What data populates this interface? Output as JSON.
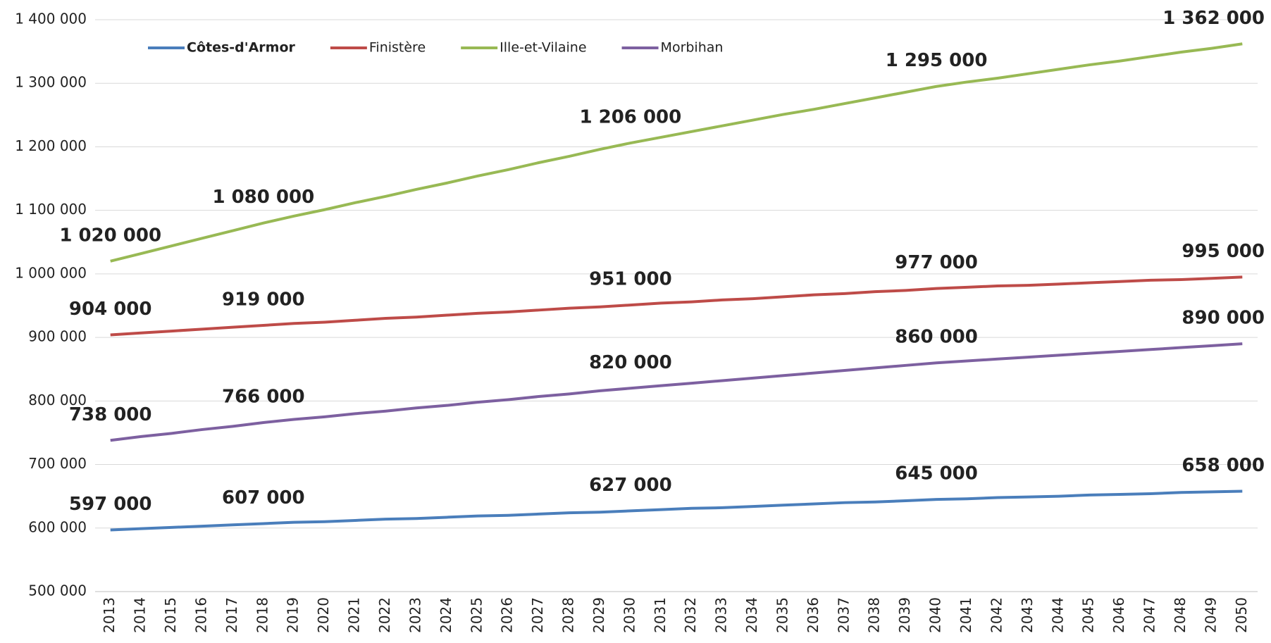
{
  "chart_data": {
    "type": "line",
    "categories": [
      "2013",
      "2014",
      "2015",
      "2016",
      "2017",
      "2018",
      "2019",
      "2020",
      "2021",
      "2022",
      "2023",
      "2024",
      "2025",
      "2026",
      "2027",
      "2028",
      "2029",
      "2030",
      "2031",
      "2032",
      "2033",
      "2034",
      "2035",
      "2036",
      "2037",
      "2038",
      "2039",
      "2040",
      "2041",
      "2042",
      "2043",
      "2044",
      "2045",
      "2046",
      "2047",
      "2048",
      "2049",
      "2050"
    ],
    "series": [
      {
        "name": "Côtes-d'Armor",
        "color": "#4a7ebb",
        "label_color": "#6667a0",
        "values": [
          597000,
          599000,
          601000,
          603000,
          605000,
          607000,
          609000,
          610000,
          612000,
          614000,
          615000,
          617000,
          619000,
          620000,
          622000,
          624000,
          625000,
          627000,
          629000,
          631000,
          632000,
          634000,
          636000,
          638000,
          640000,
          641000,
          643000,
          645000,
          646000,
          648000,
          649000,
          650000,
          652000,
          653000,
          654000,
          656000,
          657000,
          658000
        ],
        "value_labels": [
          "597 000",
          null,
          null,
          null,
          null,
          "607 000",
          null,
          null,
          null,
          null,
          null,
          null,
          null,
          null,
          null,
          null,
          null,
          "627 000",
          null,
          null,
          null,
          null,
          null,
          null,
          null,
          null,
          null,
          "645 000",
          null,
          null,
          null,
          null,
          null,
          null,
          null,
          null,
          null,
          "658 000"
        ]
      },
      {
        "name": "Finistère",
        "color": "#be4b48",
        "label_color": "#9b2d5c",
        "values": [
          904000,
          907000,
          910000,
          913000,
          916000,
          919000,
          922000,
          924000,
          927000,
          930000,
          932000,
          935000,
          938000,
          940000,
          943000,
          946000,
          948000,
          951000,
          954000,
          956000,
          959000,
          961000,
          964000,
          967000,
          969000,
          972000,
          974000,
          977000,
          979000,
          981000,
          982000,
          984000,
          986000,
          988000,
          990000,
          991000,
          993000,
          995000
        ],
        "value_labels": [
          "904 000",
          null,
          null,
          null,
          null,
          "919 000",
          null,
          null,
          null,
          null,
          null,
          null,
          null,
          null,
          null,
          null,
          null,
          "951 000",
          null,
          null,
          null,
          null,
          null,
          null,
          null,
          null,
          null,
          "977 000",
          null,
          null,
          null,
          null,
          null,
          null,
          null,
          null,
          null,
          "995 000"
        ]
      },
      {
        "name": "Ille-et-Vilaine",
        "color": "#98b954",
        "label_color": "#92c523",
        "values": [
          1020000,
          1032000,
          1044000,
          1056000,
          1068000,
          1080000,
          1091000,
          1101000,
          1112000,
          1122000,
          1133000,
          1143000,
          1154000,
          1164000,
          1175000,
          1185000,
          1196000,
          1206000,
          1215000,
          1224000,
          1233000,
          1242000,
          1251000,
          1259000,
          1268000,
          1277000,
          1286000,
          1295000,
          1302000,
          1308000,
          1315000,
          1322000,
          1329000,
          1335000,
          1342000,
          1349000,
          1355000,
          1362000
        ],
        "value_labels": [
          "1 020 000",
          null,
          null,
          null,
          null,
          "1 080 000",
          null,
          null,
          null,
          null,
          null,
          null,
          null,
          null,
          null,
          null,
          null,
          "1 206 000",
          null,
          null,
          null,
          null,
          null,
          null,
          null,
          null,
          null,
          "1 295 000",
          null,
          null,
          null,
          null,
          null,
          null,
          null,
          null,
          null,
          "1 362 000"
        ]
      },
      {
        "name": "Morbihan",
        "color": "#7d60a0",
        "label_color": "#6667a0",
        "values": [
          738000,
          744000,
          749000,
          755000,
          760000,
          766000,
          771000,
          775000,
          780000,
          784000,
          789000,
          793000,
          798000,
          802000,
          807000,
          811000,
          816000,
          820000,
          824000,
          828000,
          832000,
          836000,
          840000,
          844000,
          848000,
          852000,
          856000,
          860000,
          863000,
          866000,
          869000,
          872000,
          875000,
          878000,
          881000,
          884000,
          887000,
          890000
        ],
        "value_labels": [
          "738 000",
          null,
          null,
          null,
          null,
          "766 000",
          null,
          null,
          null,
          null,
          null,
          null,
          null,
          null,
          null,
          null,
          null,
          "820 000",
          null,
          null,
          null,
          null,
          null,
          null,
          null,
          null,
          null,
          "860 000",
          null,
          null,
          null,
          null,
          null,
          null,
          null,
          null,
          null,
          "890 000"
        ]
      }
    ],
    "ylim": [
      500000,
      1400000
    ],
    "yticks": [
      {
        "value": 500000,
        "label": "500 000"
      },
      {
        "value": 600000,
        "label": "600 000"
      },
      {
        "value": 700000,
        "label": "700 000"
      },
      {
        "value": 800000,
        "label": "800 000"
      },
      {
        "value": 900000,
        "label": "900 000"
      },
      {
        "value": 1000000,
        "label": "1 000 000"
      },
      {
        "value": 1100000,
        "label": "1 100 000"
      },
      {
        "value": 1200000,
        "label": "1 200 000"
      },
      {
        "value": 1300000,
        "label": "1 300 000"
      },
      {
        "value": 1400000,
        "label": "1 400 000"
      }
    ],
    "grid": true,
    "legend": "top-left"
  }
}
